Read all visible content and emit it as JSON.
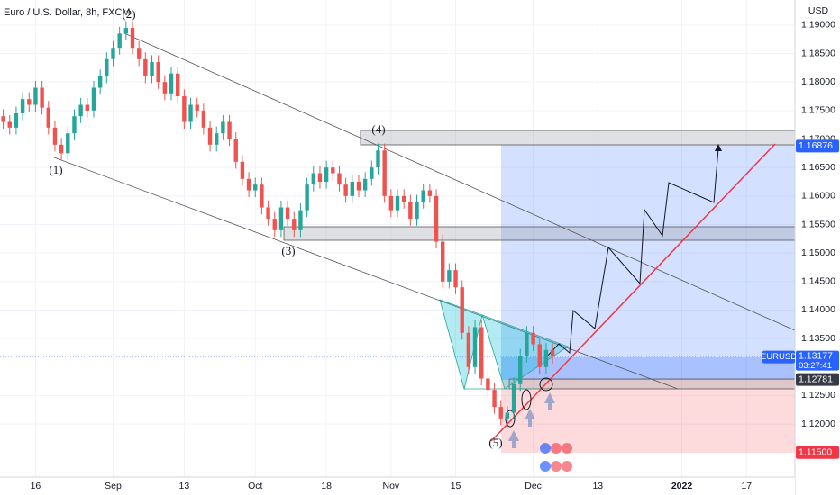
{
  "chart_data": {
    "type": "candlestick",
    "title": "Euro / U.S. Dollar, 8h, FXCM",
    "y_unit": "USD",
    "up_color": "#26a69a",
    "down_color": "#ef5350",
    "grid": true,
    "xlim": [
      -5.5,
      117.5
    ],
    "ylim": [
      1.1107,
      1.1944
    ],
    "xticks": [
      {
        "value": 0,
        "label": "16"
      },
      {
        "value": 12,
        "label": "Sep"
      },
      {
        "value": 23,
        "label": "13"
      },
      {
        "value": 34,
        "label": "Oct"
      },
      {
        "value": 45,
        "label": "18"
      },
      {
        "value": 55,
        "label": "Nov"
      },
      {
        "value": 65,
        "label": "15"
      },
      {
        "value": 77,
        "label": "Dec"
      },
      {
        "value": 87,
        "label": "13"
      },
      {
        "value": 100,
        "label": "2022"
      },
      {
        "value": 110,
        "label": "17"
      }
    ],
    "yticks": [
      {
        "value": 1.12,
        "label": "1.12000"
      },
      {
        "value": 1.125,
        "label": "1.12500"
      },
      {
        "value": 1.135,
        "label": "1.13500"
      },
      {
        "value": 1.14,
        "label": "1.14000"
      },
      {
        "value": 1.145,
        "label": "1.14500"
      },
      {
        "value": 1.15,
        "label": "1.15000"
      },
      {
        "value": 1.155,
        "label": "1.15500"
      },
      {
        "value": 1.16,
        "label": "1.16000"
      },
      {
        "value": 1.165,
        "label": "1.16500"
      },
      {
        "value": 1.17,
        "label": "1.17000"
      },
      {
        "value": 1.175,
        "label": "1.17500"
      },
      {
        "value": 1.18,
        "label": "1.18000"
      },
      {
        "value": 1.185,
        "label": "1.18500"
      },
      {
        "value": 1.19,
        "label": "1.19000"
      }
    ],
    "x": [
      -5,
      -4,
      -3,
      -2,
      -1,
      0,
      1,
      2,
      3,
      4,
      5,
      6,
      7,
      8,
      9,
      10,
      11,
      12,
      13,
      14,
      15,
      16,
      17,
      18,
      19,
      20,
      21,
      22,
      23,
      24,
      25,
      26,
      27,
      28,
      29,
      30,
      31,
      32,
      33,
      34,
      35,
      36,
      37,
      38,
      39,
      40,
      41,
      42,
      43,
      44,
      45,
      46,
      47,
      48,
      49,
      50,
      51,
      52,
      53,
      54,
      55,
      56,
      57,
      58,
      59,
      60,
      61,
      62,
      63,
      64,
      65,
      66,
      67,
      68,
      69,
      70,
      71,
      72,
      73,
      74,
      75,
      76,
      77,
      78,
      79,
      80
    ],
    "open": [
      1.174,
      1.173,
      1.172,
      1.1745,
      1.177,
      1.176,
      1.179,
      1.1755,
      1.172,
      1.169,
      1.1675,
      1.171,
      1.174,
      1.176,
      1.175,
      1.179,
      1.181,
      1.184,
      1.186,
      1.1885,
      1.1895,
      1.186,
      1.184,
      1.181,
      1.1835,
      1.18,
      1.178,
      1.1815,
      1.1775,
      1.173,
      1.176,
      1.175,
      1.172,
      1.169,
      1.171,
      1.173,
      1.17,
      1.166,
      1.163,
      1.161,
      1.162,
      1.158,
      1.156,
      1.154,
      1.158,
      1.156,
      1.154,
      1.1575,
      1.162,
      1.164,
      1.1625,
      1.165,
      1.164,
      1.162,
      1.16,
      1.1625,
      1.161,
      1.163,
      1.165,
      1.168,
      1.16,
      1.1575,
      1.16,
      1.159,
      1.156,
      1.159,
      1.161,
      1.16,
      1.152,
      1.145,
      1.147,
      1.144,
      1.136,
      1.13,
      1.137,
      1.128,
      1.126,
      1.123,
      1.121,
      1.122,
      1.127,
      1.132,
      1.136,
      1.134,
      1.13,
      1.133
    ],
    "high": [
      1.1752,
      1.1742,
      1.1757,
      1.1782,
      1.1782,
      1.1802,
      1.1802,
      1.1767,
      1.1732,
      1.1702,
      1.1722,
      1.1752,
      1.1772,
      1.1772,
      1.1802,
      1.1822,
      1.1852,
      1.1872,
      1.1897,
      1.1907,
      1.1907,
      1.1872,
      1.1852,
      1.1847,
      1.1847,
      1.1812,
      1.1827,
      1.1827,
      1.1787,
      1.1772,
      1.1772,
      1.1762,
      1.1732,
      1.1722,
      1.1742,
      1.1742,
      1.1712,
      1.1672,
      1.1642,
      1.1632,
      1.1632,
      1.1592,
      1.1572,
      1.1592,
      1.1592,
      1.1572,
      1.1587,
      1.1632,
      1.1652,
      1.1652,
      1.1662,
      1.1662,
      1.1652,
      1.1632,
      1.1637,
      1.1637,
      1.1642,
      1.1662,
      1.1692,
      1.1692,
      1.1612,
      1.1612,
      1.1612,
      1.1602,
      1.1602,
      1.1622,
      1.1622,
      1.1612,
      1.1532,
      1.1482,
      1.1482,
      1.1452,
      1.1372,
      1.1382,
      1.1382,
      1.1292,
      1.1272,
      1.1242,
      1.1232,
      1.1282,
      1.1332,
      1.1372,
      1.1372,
      1.1352,
      1.1342,
      1.1342
    ],
    "low": [
      1.1718,
      1.1708,
      1.1708,
      1.1733,
      1.1748,
      1.1748,
      1.1743,
      1.1708,
      1.1678,
      1.1663,
      1.1663,
      1.1698,
      1.1728,
      1.1738,
      1.1738,
      1.1778,
      1.1798,
      1.1828,
      1.1848,
      1.1873,
      1.1848,
      1.1828,
      1.1798,
      1.1798,
      1.1788,
      1.1768,
      1.1768,
      1.1763,
      1.1718,
      1.1718,
      1.1738,
      1.1708,
      1.1678,
      1.1678,
      1.1698,
      1.1688,
      1.1648,
      1.1618,
      1.1598,
      1.1598,
      1.1568,
      1.1548,
      1.1528,
      1.1528,
      1.1548,
      1.1528,
      1.1528,
      1.1563,
      1.1608,
      1.1613,
      1.1613,
      1.1628,
      1.1608,
      1.1588,
      1.1588,
      1.1598,
      1.1598,
      1.1618,
      1.1638,
      1.1588,
      1.1563,
      1.1563,
      1.1578,
      1.1548,
      1.1548,
      1.1578,
      1.1588,
      1.1508,
      1.1438,
      1.1438,
      1.1428,
      1.1348,
      1.1288,
      1.1288,
      1.1268,
      1.1248,
      1.1218,
      1.1198,
      1.1198,
      1.1208,
      1.1258,
      1.1308,
      1.1328,
      1.1288,
      1.1288,
      1.1306
    ],
    "close": [
      1.173,
      1.172,
      1.1745,
      1.177,
      1.176,
      1.179,
      1.1755,
      1.172,
      1.169,
      1.1675,
      1.171,
      1.174,
      1.176,
      1.175,
      1.179,
      1.181,
      1.184,
      1.186,
      1.1885,
      1.1895,
      1.186,
      1.184,
      1.181,
      1.1835,
      1.18,
      1.178,
      1.1815,
      1.1775,
      1.173,
      1.176,
      1.175,
      1.172,
      1.169,
      1.171,
      1.173,
      1.17,
      1.166,
      1.163,
      1.161,
      1.162,
      1.158,
      1.156,
      1.154,
      1.158,
      1.156,
      1.154,
      1.1575,
      1.162,
      1.164,
      1.1625,
      1.165,
      1.164,
      1.162,
      1.16,
      1.1625,
      1.161,
      1.163,
      1.165,
      1.168,
      1.16,
      1.1575,
      1.16,
      1.159,
      1.156,
      1.159,
      1.161,
      1.16,
      1.152,
      1.145,
      1.147,
      1.144,
      1.136,
      1.13,
      1.137,
      1.128,
      1.126,
      1.123,
      1.121,
      1.122,
      1.127,
      1.132,
      1.136,
      1.134,
      1.13,
      1.133,
      1.1318
    ],
    "current": {
      "name": "EURUSD",
      "value": 1.13177,
      "countdown": "03:27:41",
      "color": "#2962ff"
    },
    "price_lines": [
      {
        "value": 1.16876,
        "color": "#2962ff"
      },
      {
        "value": 1.12781,
        "color": "#363a45"
      },
      {
        "value": 1.115,
        "label": "1.11500",
        "color": "#f23645"
      }
    ],
    "annotations": [
      "(1)",
      "(2)",
      "(3)",
      "(4)",
      "(5)"
    ]
  }
}
